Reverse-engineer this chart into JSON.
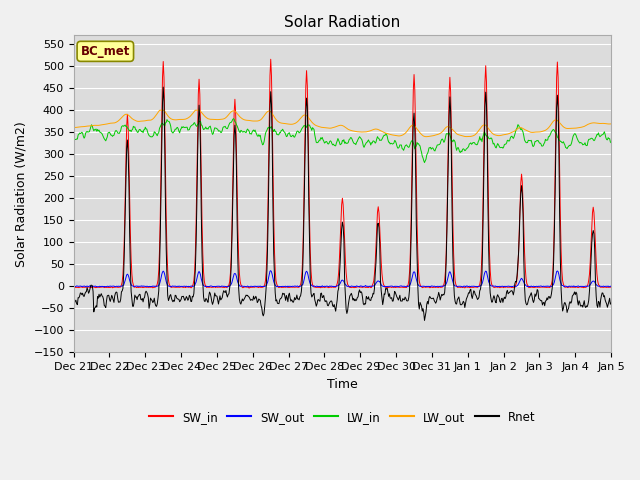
{
  "title": "Solar Radiation",
  "xlabel": "Time",
  "ylabel": "Solar Radiation (W/m2)",
  "station_label": "BC_met",
  "ylim": [
    -150,
    570
  ],
  "series_colors": {
    "SW_in": "#ff0000",
    "SW_out": "#0000ff",
    "LW_in": "#00cc00",
    "LW_out": "#ffa500",
    "Rnet": "#000000"
  },
  "legend_items": [
    "SW_in",
    "SW_out",
    "LW_in",
    "LW_out",
    "Rnet"
  ],
  "fig_bg_color": "#f0f0f0",
  "plot_bg_color": "#dcdcdc",
  "label_box_color": "#ffff99",
  "label_box_edge": "#888800",
  "grid_color": "#ffffff",
  "title_fontsize": 11,
  "axis_fontsize": 9,
  "tick_fontsize": 8
}
